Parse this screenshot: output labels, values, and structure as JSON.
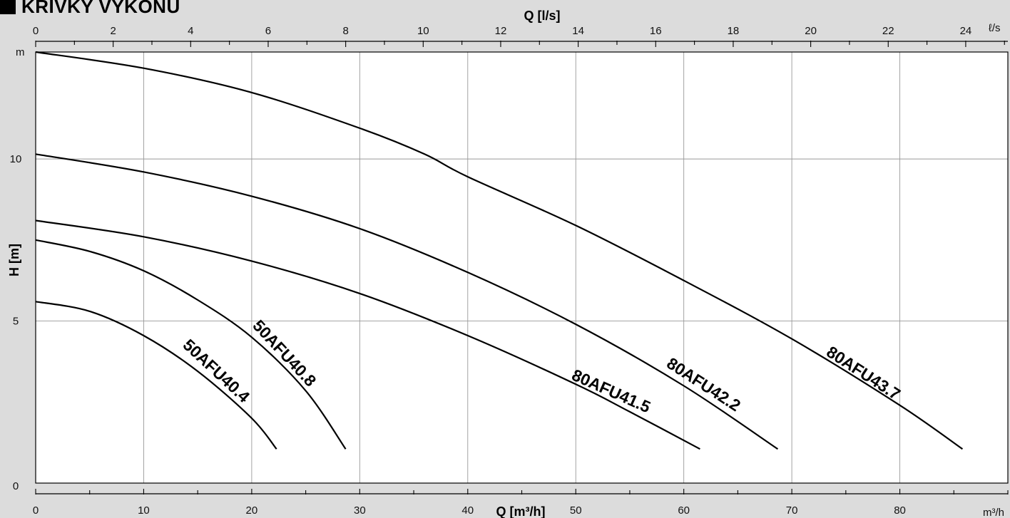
{
  "heading": {
    "title": "KŘIVKY VÝKONU",
    "marker_icon": "black-square-icon"
  },
  "chart_data": {
    "type": "line",
    "title": "KŘIVKY VÝKONU",
    "xlabel": "Q [m³/h]",
    "x_unit": "m³/h",
    "x2label": "Q [l/s]",
    "x2_unit": "ℓ/s",
    "ylabel": "H [m]",
    "y_unit": "m",
    "xlim": [
      0,
      90
    ],
    "x2lim": [
      0,
      25
    ],
    "ylim": [
      0,
      13.3
    ],
    "x_ticks": [
      0,
      10,
      20,
      30,
      40,
      50,
      60,
      70,
      80
    ],
    "x_minor_step": 5,
    "x2_ticks": [
      0,
      2,
      4,
      6,
      8,
      10,
      12,
      14,
      16,
      18,
      20,
      22,
      24
    ],
    "x2_minor_step": 1,
    "y_ticks": [
      0,
      5,
      10
    ],
    "grid": true,
    "colors": {
      "background": "#dcdcdc",
      "plot_background": "#ffffff",
      "grid": "#999999",
      "curve": "#000000"
    },
    "series": [
      {
        "name": "50AFU40.4",
        "x": [
          0,
          5,
          10,
          15,
          20,
          22.3
        ],
        "y": [
          5.6,
          5.3,
          4.55,
          3.45,
          2.0,
          1.05
        ]
      },
      {
        "name": "50AFU40.8",
        "x": [
          0,
          5,
          10,
          15,
          20,
          25,
          28.7
        ],
        "y": [
          7.5,
          7.15,
          6.55,
          5.65,
          4.5,
          2.85,
          1.05
        ]
      },
      {
        "name": "80AFU41.5",
        "x": [
          0,
          10,
          20,
          30,
          40,
          50,
          55,
          61.5
        ],
        "y": [
          8.1,
          7.6,
          6.85,
          5.85,
          4.55,
          3.05,
          2.2,
          1.05
        ]
      },
      {
        "name": "80AFU42.2",
        "x": [
          0,
          10,
          20,
          30,
          40,
          50,
          60,
          68.7
        ],
        "y": [
          10.15,
          9.6,
          8.85,
          7.85,
          6.5,
          4.9,
          3.0,
          1.05
        ]
      },
      {
        "name": "80AFU43.7",
        "x": [
          0,
          10,
          20,
          30,
          36,
          40,
          50,
          60,
          70,
          80,
          85.8
        ],
        "y": [
          13.3,
          12.8,
          12.05,
          10.95,
          10.15,
          9.45,
          7.95,
          6.25,
          4.45,
          2.4,
          1.05
        ]
      }
    ],
    "curve_labels": [
      {
        "text": "50AFU40.4",
        "series": "50AFU40.4"
      },
      {
        "text": "50AFU40.8",
        "series": "50AFU40.8"
      },
      {
        "text": "80AFU41.5",
        "series": "80AFU41.5"
      },
      {
        "text": "80AFU42.2",
        "series": "80AFU42.2"
      },
      {
        "text": "80AFU43.7",
        "series": "80AFU43.7"
      }
    ]
  }
}
